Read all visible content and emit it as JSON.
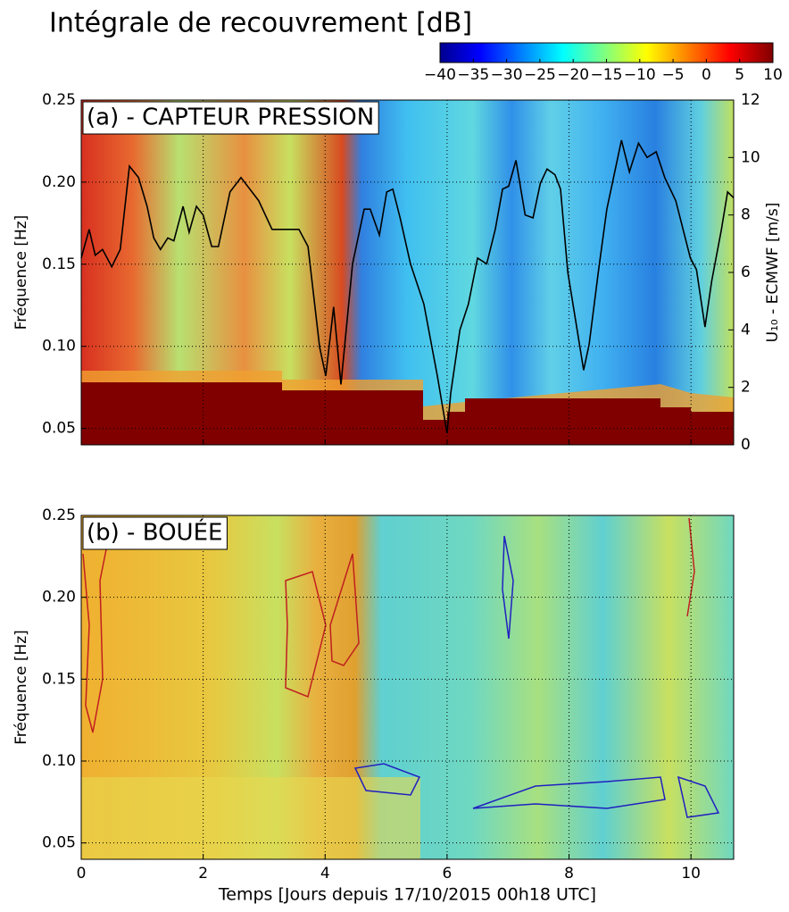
{
  "title": "Intégrale de recouvrement [dB]",
  "chart_data": [
    {
      "type": "line",
      "panel_label": "(a) - CAPTEUR PRESSION",
      "ylabel": "Fréquence [Hz]",
      "y2label": "U₁₀ - ECMWF [m/s]",
      "xlim": [
        0,
        10.7
      ],
      "xticks": [
        0,
        2,
        4,
        6,
        8,
        10
      ],
      "ylim": [
        0.04,
        0.25
      ],
      "yticks": [
        {
          "value": 0.05,
          "label": "0.05"
        },
        {
          "value": 0.1,
          "label": "0.10"
        },
        0.15,
        {
          "value": 0.2,
          "label": "0.20"
        },
        0.25
      ],
      "y2lim": [
        0,
        12
      ],
      "y2ticks": [
        0,
        2,
        4,
        6,
        8,
        10,
        12
      ],
      "grid": true,
      "colorbar_lim": [
        -40,
        10
      ],
      "colorbar_ticks": [
        {
          "value": -40,
          "label": "−40"
        },
        {
          "value": -35,
          "label": "−35"
        },
        {
          "value": -30,
          "label": "−30"
        },
        {
          "value": -25,
          "label": "−25"
        },
        {
          "value": -20,
          "label": "−20"
        },
        {
          "value": -15,
          "label": "−15"
        },
        {
          "value": -10,
          "label": "−10"
        },
        {
          "value": -5,
          "label": "−5"
        },
        0,
        5,
        10
      ],
      "series": [
        {
          "color": "#000000",
          "axis": "y2",
          "x": [
            0,
            0.13,
            0.23,
            0.35,
            0.5,
            0.64,
            0.79,
            0.94,
            1.08,
            1.19,
            1.3,
            1.42,
            1.52,
            1.67,
            1.77,
            1.89,
            2.0,
            2.14,
            2.25,
            2.44,
            2.62,
            2.91,
            3.13,
            3.28,
            3.57,
            3.72,
            3.91,
            4.01,
            4.14,
            4.26,
            4.45,
            4.64,
            4.74,
            4.89,
            5.01,
            5.11,
            5.23,
            5.4,
            5.62,
            5.84,
            6.0,
            6.06,
            6.21,
            6.35,
            6.5,
            6.65,
            6.79,
            6.91,
            7.01,
            7.13,
            7.28,
            7.41,
            7.53,
            7.64,
            7.77,
            7.86,
            7.98,
            8.11,
            8.24,
            8.33,
            8.48,
            8.62,
            8.74,
            8.86,
            8.99,
            9.14,
            9.28,
            9.43,
            9.57,
            9.75,
            9.87,
            9.99,
            10.09,
            10.23,
            10.34,
            10.5,
            10.6,
            10.7
          ],
          "values": [
            6.5,
            7.5,
            6.6,
            6.8,
            6.2,
            6.8,
            9.7,
            9.3,
            8.3,
            7.2,
            6.8,
            7.2,
            7.1,
            8.3,
            7.4,
            8.3,
            8.0,
            6.9,
            6.9,
            8.8,
            9.3,
            8.5,
            7.5,
            7.5,
            7.5,
            6.9,
            3.4,
            2.4,
            4.8,
            2.1,
            6.3,
            8.2,
            8.2,
            7.3,
            8.8,
            8.9,
            7.9,
            6.3,
            4.9,
            2.4,
            0.4,
            1.8,
            4.0,
            4.9,
            6.5,
            6.3,
            7.5,
            8.9,
            9.0,
            9.9,
            8.0,
            7.9,
            9.1,
            9.6,
            9.4,
            8.9,
            6.0,
            4.3,
            2.6,
            3.5,
            6.0,
            8.2,
            9.4,
            10.6,
            9.5,
            10.5,
            10.0,
            10.2,
            9.3,
            8.5,
            7.5,
            6.5,
            6.1,
            4.1,
            5.7,
            7.5,
            8.8,
            8.6
          ]
        }
      ]
    },
    {
      "type": "heatmap",
      "panel_label": "(b) - BOUÉE",
      "ylabel": "Fréquence [Hz]",
      "xlabel": "Temps [Jours depuis 17/10/2015 00h18 UTC]",
      "xlim": [
        0,
        10.7
      ],
      "xticks": [
        0,
        2,
        4,
        6,
        8,
        10
      ],
      "ylim": [
        0.04,
        0.25
      ],
      "yticks": [
        {
          "value": 0.05,
          "label": "0.05"
        },
        {
          "value": 0.1,
          "label": "0.10"
        },
        0.15,
        {
          "value": 0.2,
          "label": "0.20"
        },
        0.25
      ],
      "grid": true
    }
  ]
}
